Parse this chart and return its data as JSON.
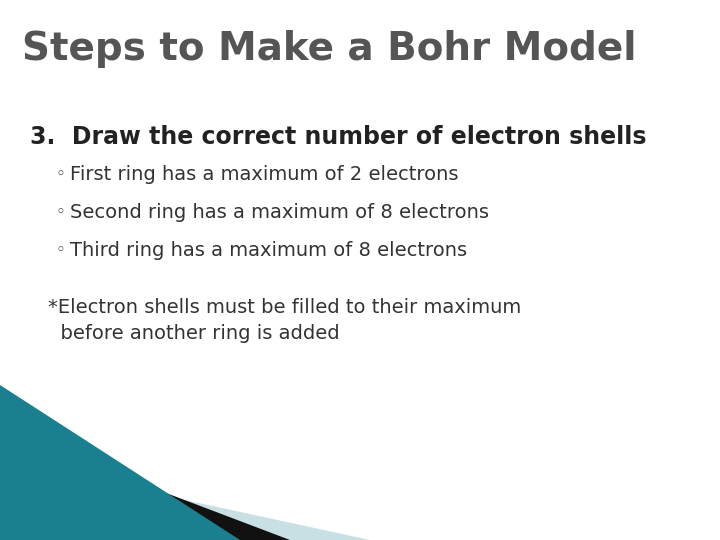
{
  "title": "Steps to Make a Bohr Model",
  "title_color": "#555555",
  "title_fontsize": 28,
  "background_color": "#ffffff",
  "heading": "3.  Draw the correct number of electron shells",
  "heading_fontsize": 17,
  "heading_color": "#222222",
  "bullets": [
    "First ring has a maximum of 2 electrons",
    "Second ring has a maximum of 8 electrons",
    "Third ring has a maximum of 8 electrons"
  ],
  "bullet_fontsize": 14,
  "bullet_color": "#333333",
  "bullet_symbol": "◦",
  "note_line1": "*Electron shells must be filled to their maximum",
  "note_line2": "  before another ring is added",
  "note_fontsize": 14,
  "note_color": "#333333",
  "corner_teal": "#1a7f8e",
  "corner_black": "#111111",
  "corner_light": "#c8dfe3"
}
